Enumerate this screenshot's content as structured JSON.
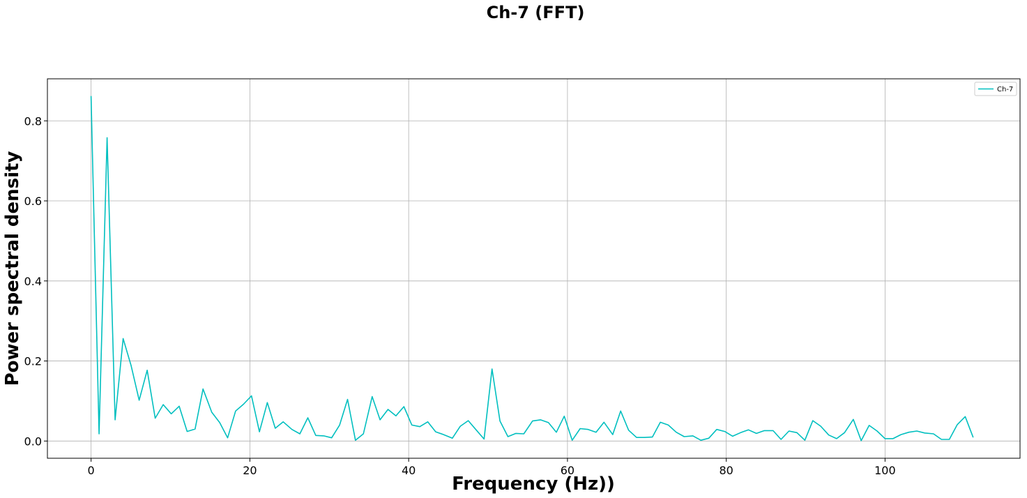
{
  "chart_data": {
    "type": "line",
    "title": "Ch-7 (FFT)",
    "xlabel": "Frequency (Hz))",
    "ylabel": "Power spectral density",
    "xlim": [
      -5.5,
      117
    ],
    "ylim": [
      -0.043,
      0.905
    ],
    "xticks": [
      0,
      20,
      40,
      60,
      80,
      100
    ],
    "xtick_labels": [
      "0",
      "20",
      "40",
      "60",
      "80",
      "100"
    ],
    "yticks": [
      0.0,
      0.2,
      0.4,
      0.6,
      0.8
    ],
    "ytick_labels": [
      "0.0",
      "0.2",
      "0.4",
      "0.6",
      "0.8"
    ],
    "grid": true,
    "legend_position": "top-right",
    "series": [
      {
        "name": "Ch-7",
        "color": "#00bfbf",
        "x": [
          0,
          1.01,
          2.02,
          3.03,
          4.04,
          5.05,
          6.06,
          7.07,
          8.08,
          9.09,
          10.1,
          11.1,
          12.1,
          13.1,
          14.1,
          15.2,
          16.2,
          17.2,
          18.2,
          19.2,
          20.2,
          21.2,
          22.2,
          23.2,
          24.2,
          25.3,
          26.3,
          27.3,
          28.3,
          29.3,
          30.3,
          31.3,
          32.3,
          33.3,
          34.3,
          35.4,
          36.4,
          37.4,
          38.4,
          39.4,
          40.4,
          41.4,
          42.4,
          43.4,
          44.4,
          45.5,
          46.5,
          47.5,
          48.5,
          49.5,
          50.5,
          51.5,
          52.5,
          53.5,
          54.5,
          55.6,
          56.6,
          57.6,
          58.6,
          59.6,
          60.6,
          61.6,
          62.6,
          63.6,
          64.6,
          65.7,
          66.7,
          67.7,
          68.7,
          69.7,
          70.7,
          71.7,
          72.7,
          73.7,
          74.7,
          75.8,
          76.8,
          77.8,
          78.8,
          79.8,
          80.8,
          81.8,
          82.8,
          83.8,
          84.8,
          85.9,
          86.9,
          87.9,
          88.9,
          89.9,
          90.9,
          91.9,
          92.9,
          93.9,
          94.9,
          96,
          97,
          98,
          99,
          100,
          101,
          102,
          103,
          104,
          105,
          106.1,
          107.1,
          108.1,
          109.1,
          110.1,
          111.1
        ],
        "y": [
          0.862,
          0.018,
          0.758,
          0.053,
          0.256,
          0.188,
          0.102,
          0.177,
          0.057,
          0.091,
          0.068,
          0.087,
          0.024,
          0.03,
          0.13,
          0.072,
          0.046,
          0.008,
          0.075,
          0.092,
          0.113,
          0.023,
          0.096,
          0.032,
          0.048,
          0.029,
          0.018,
          0.058,
          0.014,
          0.013,
          0.008,
          0.04,
          0.104,
          0.002,
          0.018,
          0.111,
          0.053,
          0.079,
          0.063,
          0.086,
          0.04,
          0.036,
          0.048,
          0.023,
          0.016,
          0.007,
          0.037,
          0.051,
          0.028,
          0.005,
          0.18,
          0.05,
          0.011,
          0.019,
          0.018,
          0.05,
          0.053,
          0.046,
          0.022,
          0.062,
          0.002,
          0.031,
          0.029,
          0.022,
          0.047,
          0.016,
          0.075,
          0.027,
          0.009,
          0.009,
          0.01,
          0.047,
          0.04,
          0.022,
          0.011,
          0.013,
          0.002,
          0.007,
          0.029,
          0.024,
          0.012,
          0.021,
          0.028,
          0.019,
          0.026,
          0.026,
          0.004,
          0.025,
          0.021,
          0.002,
          0.051,
          0.037,
          0.015,
          0.006,
          0.021,
          0.054,
          0.001,
          0.039,
          0.025,
          0.006,
          0.006,
          0.016,
          0.022,
          0.025,
          0.02,
          0.018,
          0.004,
          0.004,
          0.041,
          0.061,
          0.009
        ]
      }
    ]
  }
}
